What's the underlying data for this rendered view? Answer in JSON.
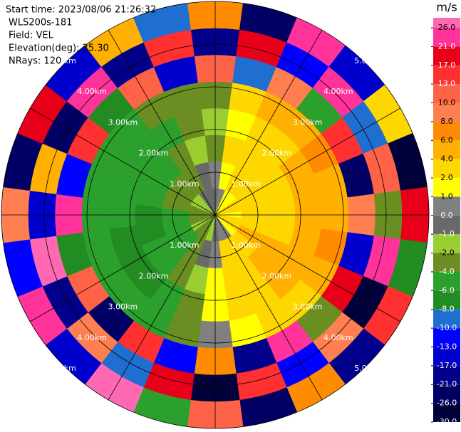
{
  "chart_data": {
    "type": "ppi",
    "info": [
      "Start time: 2023/08/06 21:26:32",
      "WLS200s-181",
      "Field: VEL",
      "Elevation(deg): 35.30",
      "NRays: 120"
    ],
    "colorbar_label": "m/s",
    "colorbar_ticks": [
      {
        "value": -30,
        "label": "-30.0"
      },
      {
        "value": -26,
        "label": "-26.0"
      },
      {
        "value": -21,
        "label": "-21.0"
      },
      {
        "value": -17,
        "label": "-17.0"
      },
      {
        "value": -13,
        "label": "-13.0"
      },
      {
        "value": -10,
        "label": "-10.0"
      },
      {
        "value": -8,
        "label": "-8.0"
      },
      {
        "value": -6,
        "label": "-6.0"
      },
      {
        "value": -4,
        "label": "-4.0"
      },
      {
        "value": -2,
        "label": "-2.0"
      },
      {
        "value": -1,
        "label": "-1.0"
      },
      {
        "value": 0,
        "label": "0.0"
      },
      {
        "value": 1,
        "label": "1.0"
      },
      {
        "value": 2,
        "label": "2.0"
      },
      {
        "value": 4,
        "label": "4.0"
      },
      {
        "value": 6,
        "label": "6.0"
      },
      {
        "value": 8,
        "label": "8.0"
      },
      {
        "value": 10,
        "label": "10.0"
      },
      {
        "value": 13,
        "label": "13.0"
      },
      {
        "value": 17,
        "label": "17.0"
      },
      {
        "value": 21,
        "label": "21.0"
      },
      {
        "value": 26,
        "label": "26.0"
      }
    ],
    "colors": [
      "#00003a",
      "#000064",
      "#00008b",
      "#0000cd",
      "#0000ff",
      "#1f6fd0",
      "#228b22",
      "#2ca02c",
      "#6b8e23",
      "#9acd32",
      "#696969",
      "#808080",
      "#ffff00",
      "#ffd700",
      "#ffb000",
      "#ff8c00",
      "#ff7f50",
      "#ff6347",
      "#ff3030",
      "#e8001a",
      "#ff3399",
      "#ff69b4"
    ],
    "rlim": [
      0,
      5
    ],
    "rticks": [
      {
        "value": 1,
        "label": "1.00km"
      },
      {
        "value": 2,
        "label": "2.00km"
      },
      {
        "value": 3,
        "label": "3.00km"
      },
      {
        "value": 4,
        "label": "4.00km"
      },
      {
        "value": 5,
        "label": "5.00km"
      }
    ],
    "azimuths": [
      0,
      15,
      30,
      45,
      60,
      75,
      90,
      105,
      120,
      135,
      150,
      165,
      180,
      195,
      210,
      225,
      240,
      255,
      270,
      285,
      300,
      315,
      330,
      345
    ],
    "range_edges": [
      0,
      0.625,
      1.25,
      1.875,
      2.5,
      3.125,
      3.75,
      4.375,
      5
    ],
    "values": [
      [
        -1,
        0.5,
        -3,
        -2,
        -4,
        12,
        -20,
        7
      ],
      [
        0.5,
        1.5,
        2,
        1.5,
        3,
        -10,
        18,
        -26
      ],
      [
        1.5,
        2.5,
        3,
        2.5,
        5,
        9,
        -13,
        22
      ],
      [
        1.5,
        3,
        3,
        3.5,
        5,
        -6,
        25,
        -17
      ],
      [
        2,
        3,
        3.5,
        4.5,
        7,
        15,
        -9,
        3
      ],
      [
        2,
        3,
        3.5,
        5,
        4.5,
        -22,
        11,
        -28
      ],
      [
        1.5,
        3,
        3.5,
        5,
        5,
        9,
        -4,
        19
      ],
      [
        2,
        3.5,
        3.5,
        5,
        6,
        -14,
        24,
        -7
      ],
      [
        2,
        4.5,
        5,
        5.5,
        5,
        18,
        -27,
        14
      ],
      [
        1.5,
        3.5,
        5,
        4.5,
        3,
        -3,
        9,
        -19
      ],
      [
        0.5,
        3,
        3.5,
        3,
        2.5,
        22,
        -11,
        6
      ],
      [
        0.5,
        2.5,
        2.5,
        2.5,
        1.5,
        -18,
        15,
        -24
      ],
      [
        -1,
        0.5,
        1.5,
        1.5,
        0.5,
        7,
        -29,
        11
      ],
      [
        -1.5,
        -1,
        -2,
        -3,
        -4,
        -12,
        20,
        -5
      ],
      [
        -3,
        -3,
        -3,
        -5,
        -5,
        16,
        -9,
        27
      ],
      [
        -3,
        -5,
        -5,
        -7,
        -5,
        -25,
        8,
        -14
      ],
      [
        -2,
        -5,
        -5,
        -7,
        -5,
        12,
        -18,
        23
      ],
      [
        -3,
        -5,
        -7,
        -7,
        -5,
        -7,
        26,
        -12
      ],
      [
        -3,
        -5,
        -7,
        -5,
        -4.5,
        21,
        -15,
        9
      ],
      [
        -3,
        -3,
        -5,
        -5,
        -5,
        -11,
        5,
        -23
      ],
      [
        -2,
        -3,
        -5,
        -5,
        -4.5,
        14,
        -26,
        18
      ],
      [
        -1.5,
        -3,
        -5,
        -5,
        -4.5,
        -8,
        23,
        -16
      ],
      [
        -1,
        -3,
        -3,
        -5,
        -3,
        10,
        -21,
        4
      ],
      [
        -0.5,
        -1,
        -1.5,
        -3,
        -4,
        -16,
        13,
        -9
      ]
    ]
  }
}
